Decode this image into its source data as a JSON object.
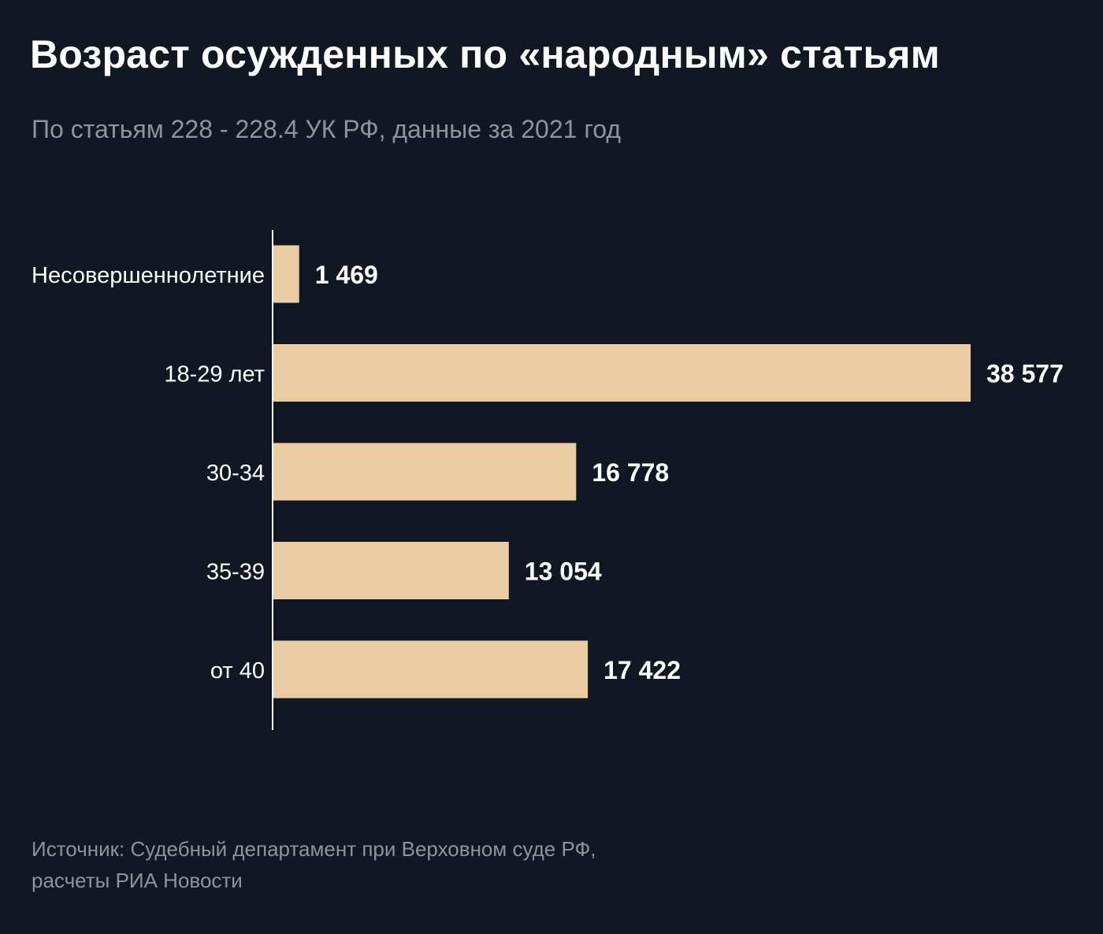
{
  "title": "Возраст осужденных по «народным» статьям",
  "subtitle": "По статьям 228 - 228.4 УК РФ, данные за 2021 год",
  "source": {
    "line1": "Источник: Судебный департамент при Верховном суде РФ,",
    "line2": "расчеты РИА Новости"
  },
  "colors": {
    "background": "#111723",
    "bar": "#e9cc9f",
    "axis": "#ffffff",
    "label": "#ffffff",
    "muted": "#8f949c"
  },
  "chart_data": {
    "type": "bar",
    "orientation": "horizontal",
    "title": "Возраст осужденных по «народным» статьям",
    "subtitle": "По статьям 228 - 228.4 УК РФ, данные за 2021 год",
    "categories": [
      "Несовершеннолетние",
      "18-29 лет",
      "30-34",
      "35-39",
      "от 40"
    ],
    "values": [
      1469,
      38577,
      16778,
      13054,
      17422
    ],
    "value_labels": [
      "1 469",
      "38 577",
      "16 778",
      "13 054",
      "17 422"
    ],
    "xlim": [
      0,
      38577
    ],
    "grid": false,
    "legend": "none"
  }
}
